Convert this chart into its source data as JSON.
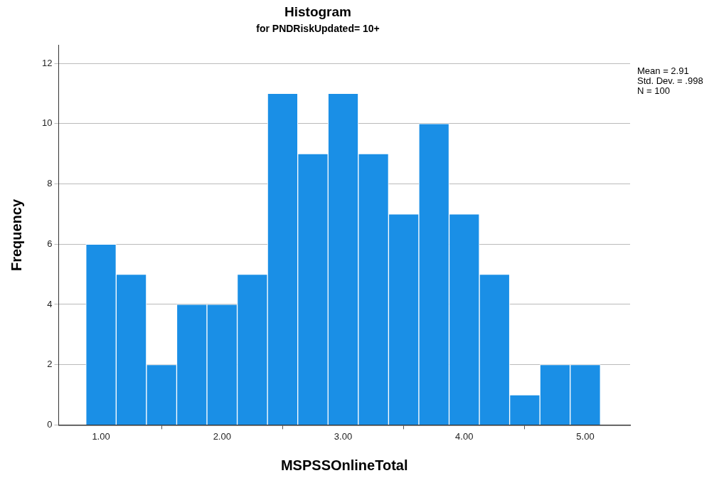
{
  "chart_data": {
    "type": "histogram",
    "title": "Histogram",
    "subtitle": "for PNDRiskUpdated= 10+",
    "xlabel": "MSPSSOnlineTotal",
    "ylabel": "Frequency",
    "bins": [
      0.875,
      1.125,
      1.375,
      1.625,
      1.875,
      2.125,
      2.375,
      2.625,
      2.875,
      3.125,
      3.375,
      3.625,
      3.875,
      4.125,
      4.375,
      4.625,
      4.875,
      5.125
    ],
    "values": [
      6,
      5,
      2,
      4,
      4,
      5,
      11,
      9,
      11,
      9,
      7,
      10,
      7,
      5,
      1,
      2,
      2
    ],
    "color": "#1a8fe6",
    "xlim": [
      0.65,
      5.37
    ],
    "xticks": [
      {
        "value": 1,
        "label": "1.00"
      },
      {
        "value": 2,
        "label": "2.00"
      },
      {
        "value": 3,
        "label": "3.00"
      },
      {
        "value": 4,
        "label": "4.00"
      },
      {
        "value": 5,
        "label": "5.00"
      }
    ],
    "ylim": [
      0,
      12.6
    ],
    "yticks": [
      0,
      2,
      4,
      6,
      8,
      10,
      12
    ],
    "grid": "y",
    "legend": false,
    "annotations": [
      "Mean = 2.91",
      "Std. Dev. = .998",
      "N = 100"
    ]
  }
}
